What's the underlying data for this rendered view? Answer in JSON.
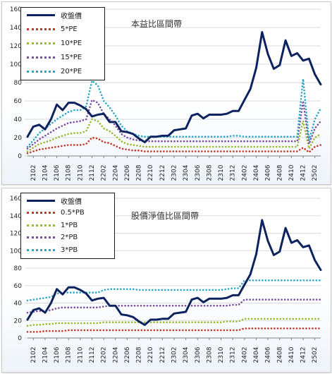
{
  "chart_data": [
    {
      "type": "line",
      "title": "本益比區間帶",
      "ylim": [
        0,
        160
      ],
      "yticks": [
        0,
        20,
        40,
        60,
        80,
        100,
        120,
        140,
        160
      ],
      "xtick_labels": [
        "2102",
        "2104",
        "2106",
        "2108",
        "2110",
        "2112",
        "2202",
        "2204",
        "2206",
        "2208",
        "2210",
        "2212",
        "2302",
        "2304",
        "2306",
        "2308",
        "2310",
        "2312",
        "2402",
        "2404",
        "2406",
        "2408",
        "2410",
        "2412",
        "2502"
      ],
      "x": [
        "2101",
        "2102",
        "2103",
        "2104",
        "2105",
        "2106",
        "2107",
        "2108",
        "2109",
        "2110",
        "2111",
        "2112",
        "2201",
        "2202",
        "2203",
        "2204",
        "2205",
        "2206",
        "2207",
        "2208",
        "2209",
        "2210",
        "2211",
        "2212",
        "2301",
        "2302",
        "2303",
        "2304",
        "2305",
        "2306",
        "2307",
        "2308",
        "2309",
        "2310",
        "2311",
        "2312",
        "2401",
        "2402",
        "2403",
        "2404",
        "2405",
        "2406",
        "2407",
        "2408",
        "2409",
        "2410",
        "2411",
        "2412",
        "2501",
        "2502",
        "2503"
      ],
      "legend_position": "top-left",
      "series": [
        {
          "name": "收盤價",
          "color": "#0d2360",
          "style": "solid",
          "values": [
            21,
            32,
            34,
            29,
            40,
            56,
            50,
            58,
            58,
            55,
            51,
            43,
            45,
            46,
            37,
            37,
            27,
            26,
            24,
            19,
            15,
            21,
            21,
            22,
            22,
            28,
            29,
            30,
            44,
            46,
            41,
            45,
            45,
            45,
            46,
            49,
            49,
            61,
            73,
            96,
            135,
            111,
            95,
            99,
            126,
            109,
            112,
            104,
            106,
            89,
            78
          ]
        },
        {
          "name": "5*PE",
          "color": "#c0392b",
          "style": "dotted",
          "values": [
            3,
            5,
            7,
            8,
            9,
            10,
            11,
            12,
            12,
            12,
            13,
            20,
            19,
            15,
            14,
            11,
            8,
            7,
            6,
            6,
            5,
            5,
            5,
            5,
            5,
            5,
            5,
            5,
            5,
            5,
            5,
            5,
            5,
            5,
            5,
            5,
            5,
            5,
            5,
            5,
            5,
            5,
            5,
            5,
            5,
            5,
            5,
            9,
            4,
            10,
            12
          ]
        },
        {
          "name": "10*PE",
          "color": "#9bbb2e",
          "style": "dotted",
          "values": [
            5,
            9,
            13,
            15,
            17,
            20,
            22,
            24,
            25,
            25,
            27,
            40,
            38,
            30,
            27,
            22,
            16,
            13,
            12,
            11,
            10,
            10,
            10,
            10,
            10,
            10,
            10,
            10,
            10,
            10,
            10,
            10,
            10,
            10,
            10,
            10,
            10,
            10,
            10,
            10,
            10,
            10,
            10,
            10,
            10,
            10,
            10,
            38,
            8,
            20,
            24
          ]
        },
        {
          "name": "15*PE",
          "color": "#7b4fa0",
          "style": "dotted",
          "values": [
            8,
            13,
            18,
            22,
            26,
            30,
            33,
            36,
            37,
            38,
            40,
            61,
            58,
            46,
            40,
            33,
            24,
            20,
            18,
            17,
            16,
            16,
            16,
            16,
            16,
            16,
            16,
            16,
            16,
            16,
            16,
            16,
            16,
            16,
            16,
            16,
            16,
            16,
            16,
            16,
            16,
            16,
            16,
            16,
            16,
            16,
            16,
            60,
            13,
            30,
            38
          ]
        },
        {
          "name": "20*PE",
          "color": "#2aa7c4",
          "style": "dotted",
          "values": [
            10,
            17,
            25,
            30,
            35,
            40,
            44,
            48,
            50,
            50,
            54,
            82,
            77,
            60,
            53,
            44,
            33,
            27,
            24,
            22,
            21,
            21,
            21,
            21,
            21,
            21,
            21,
            21,
            21,
            21,
            21,
            21,
            21,
            21,
            21,
            22,
            22,
            21,
            21,
            21,
            21,
            21,
            21,
            21,
            21,
            21,
            21,
            84,
            17,
            40,
            52
          ]
        }
      ]
    },
    {
      "type": "line",
      "title": "股價淨值比區間帶",
      "ylim": [
        0,
        160
      ],
      "yticks": [
        0,
        20,
        40,
        60,
        80,
        100,
        120,
        140,
        160
      ],
      "xtick_labels": [
        "2102",
        "2104",
        "2106",
        "2108",
        "2110",
        "2112",
        "2202",
        "2204",
        "2206",
        "2208",
        "2210",
        "2212",
        "2302",
        "2304",
        "2306",
        "2308",
        "2310",
        "2312",
        "2402",
        "2404",
        "2406",
        "2408",
        "2410",
        "2412",
        "2502"
      ],
      "x": [
        "2101",
        "2102",
        "2103",
        "2104",
        "2105",
        "2106",
        "2107",
        "2108",
        "2109",
        "2110",
        "2111",
        "2112",
        "2201",
        "2202",
        "2203",
        "2204",
        "2205",
        "2206",
        "2207",
        "2208",
        "2209",
        "2210",
        "2211",
        "2212",
        "2301",
        "2302",
        "2303",
        "2304",
        "2305",
        "2306",
        "2307",
        "2308",
        "2309",
        "2310",
        "2311",
        "2312",
        "2401",
        "2402",
        "2403",
        "2404",
        "2405",
        "2406",
        "2407",
        "2408",
        "2409",
        "2410",
        "2411",
        "2412",
        "2501",
        "2502",
        "2503"
      ],
      "legend_position": "top-left",
      "series": [
        {
          "name": "收盤價",
          "color": "#0d2360",
          "style": "solid",
          "values": [
            21,
            32,
            34,
            29,
            40,
            56,
            50,
            58,
            58,
            55,
            51,
            43,
            45,
            46,
            37,
            37,
            27,
            26,
            24,
            19,
            15,
            21,
            21,
            22,
            22,
            28,
            29,
            30,
            44,
            46,
            41,
            45,
            45,
            45,
            46,
            49,
            49,
            61,
            73,
            96,
            135,
            111,
            95,
            99,
            126,
            109,
            112,
            104,
            106,
            89,
            78
          ]
        },
        {
          "name": "0.5*PB",
          "color": "#c0392b",
          "style": "dotted",
          "values": [
            7,
            7,
            7,
            8,
            8,
            8,
            8,
            9,
            9,
            9,
            9,
            9,
            9,
            9,
            9,
            9,
            9,
            9,
            9,
            9,
            9,
            9,
            9,
            9,
            9,
            9,
            9,
            9,
            9,
            9,
            9,
            9,
            9,
            9,
            9,
            9,
            9,
            11,
            11,
            11,
            11,
            11,
            11,
            11,
            11,
            11,
            11,
            11,
            11,
            11,
            11
          ]
        },
        {
          "name": "1*PB",
          "color": "#9bbb2e",
          "style": "dotted",
          "values": [
            14,
            15,
            15,
            16,
            16,
            17,
            17,
            17,
            17,
            17,
            17,
            17,
            17,
            18,
            18,
            18,
            18,
            18,
            18,
            18,
            18,
            18,
            18,
            18,
            18,
            18,
            18,
            18,
            18,
            18,
            18,
            18,
            18,
            18,
            19,
            19,
            19,
            22,
            22,
            22,
            22,
            22,
            22,
            22,
            22,
            22,
            22,
            22,
            22,
            22,
            22
          ]
        },
        {
          "name": "2*PB",
          "color": "#7b4fa0",
          "style": "dotted",
          "values": [
            29,
            30,
            31,
            31,
            32,
            34,
            35,
            35,
            35,
            35,
            35,
            35,
            35,
            36,
            37,
            37,
            37,
            37,
            37,
            37,
            37,
            37,
            37,
            37,
            37,
            37,
            37,
            37,
            37,
            37,
            37,
            37,
            37,
            37,
            37,
            38,
            38,
            44,
            44,
            44,
            44,
            44,
            44,
            44,
            44,
            44,
            44,
            44,
            44,
            44,
            44
          ]
        },
        {
          "name": "3*PB",
          "color": "#2aa7c4",
          "style": "dotted",
          "values": [
            43,
            44,
            45,
            46,
            47,
            51,
            52,
            52,
            52,
            52,
            52,
            52,
            52,
            55,
            56,
            56,
            56,
            56,
            56,
            55,
            55,
            55,
            55,
            55,
            55,
            55,
            55,
            55,
            55,
            55,
            55,
            55,
            55,
            55,
            56,
            57,
            57,
            66,
            66,
            66,
            66,
            66,
            66,
            66,
            66,
            66,
            66,
            66,
            66,
            66,
            66
          ]
        }
      ]
    }
  ]
}
